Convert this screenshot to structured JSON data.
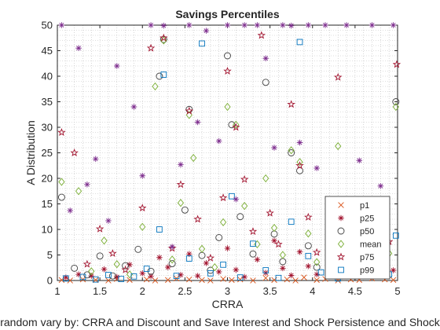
{
  "chart_data": {
    "type": "scatter",
    "title": "Savings Percentiles",
    "xlabel": "CRRA",
    "ylabel": "A Distribution",
    "caption": "random vary by: CRRA and Discount and Save Interest and Shock Persistence and Shock",
    "xlim": [
      1,
      5
    ],
    "ylim": [
      0,
      50
    ],
    "xticks": [
      "1",
      "1.5",
      "2",
      "2.5",
      "3",
      "3.5",
      "4",
      "4.5",
      "5"
    ],
    "yticks": [
      "0",
      "5",
      "10",
      "15",
      "20",
      "25",
      "30",
      "35",
      "40",
      "45",
      "50"
    ],
    "grid": "minor-dotted",
    "legend_position": "bottom-right",
    "series": [
      {
        "name": "p1",
        "marker": "x",
        "color": "#d95319",
        "points": [
          [
            1.05,
            0.1
          ],
          [
            1.15,
            0.0
          ],
          [
            1.3,
            0.2
          ],
          [
            1.45,
            0.1
          ],
          [
            1.6,
            0.0
          ],
          [
            1.7,
            0.3
          ],
          [
            1.85,
            0.1
          ],
          [
            2.05,
            0.2
          ],
          [
            2.15,
            0.0
          ],
          [
            2.3,
            0.1
          ],
          [
            2.4,
            0.4
          ],
          [
            2.55,
            0.2
          ],
          [
            2.7,
            0.1
          ],
          [
            2.8,
            0.0
          ],
          [
            2.95,
            0.3
          ],
          [
            3.05,
            0.1
          ],
          [
            3.15,
            0.2
          ],
          [
            3.3,
            0.0
          ],
          [
            3.45,
            0.5
          ],
          [
            3.55,
            0.1
          ],
          [
            3.7,
            0.2
          ],
          [
            3.8,
            0.0
          ],
          [
            3.9,
            0.6
          ],
          [
            4.05,
            0.1
          ],
          [
            4.15,
            0.3
          ],
          [
            4.3,
            0.0
          ],
          [
            4.45,
            0.2
          ],
          [
            4.55,
            0.1
          ],
          [
            4.7,
            0.4
          ],
          [
            4.85,
            0.2
          ],
          [
            4.95,
            0.1
          ]
        ]
      },
      {
        "name": "p25",
        "marker": "asterisk",
        "color": "#a2142f",
        "points": [
          [
            1.1,
            0.6
          ],
          [
            1.25,
            1.2
          ],
          [
            1.4,
            0.9
          ],
          [
            1.55,
            2.2
          ],
          [
            1.7,
            0.7
          ],
          [
            1.85,
            3.1
          ],
          [
            2.0,
            1.4
          ],
          [
            2.1,
            0.8
          ],
          [
            2.2,
            4.5
          ],
          [
            2.3,
            2.6
          ],
          [
            2.45,
            1.1
          ],
          [
            2.55,
            5.2
          ],
          [
            2.65,
            0.9
          ],
          [
            2.75,
            3.4
          ],
          [
            2.9,
            1.7
          ],
          [
            3.0,
            6.3
          ],
          [
            3.1,
            2.1
          ],
          [
            3.2,
            0.7
          ],
          [
            3.35,
            4.1
          ],
          [
            3.45,
            1.5
          ],
          [
            3.55,
            7.8
          ],
          [
            3.65,
            2.4
          ],
          [
            3.75,
            1.0
          ],
          [
            3.85,
            5.6
          ],
          [
            3.95,
            2.8
          ],
          [
            4.05,
            1.2
          ],
          [
            4.2,
            3.9
          ],
          [
            4.35,
            0.8
          ],
          [
            4.5,
            2.3
          ],
          [
            4.65,
            1.6
          ],
          [
            4.8,
            4.4
          ],
          [
            4.95,
            2.0
          ]
        ]
      },
      {
        "name": "p50",
        "marker": "circle",
        "color": "#404040",
        "points": [
          [
            1.05,
            16.3
          ],
          [
            1.2,
            2.4
          ],
          [
            1.35,
            1.1
          ],
          [
            1.5,
            4.8
          ],
          [
            1.65,
            0.9
          ],
          [
            1.8,
            2.9
          ],
          [
            1.95,
            6.1
          ],
          [
            2.1,
            1.8
          ],
          [
            2.2,
            40.0
          ],
          [
            2.25,
            47.2
          ],
          [
            2.35,
            3.3
          ],
          [
            2.5,
            13.8
          ],
          [
            2.55,
            33.5
          ],
          [
            2.7,
            4.9
          ],
          [
            2.8,
            2.0
          ],
          [
            2.9,
            8.4
          ],
          [
            3.0,
            44.0
          ],
          [
            3.05,
            30.5
          ],
          [
            3.15,
            12.5
          ],
          [
            3.3,
            5.2
          ],
          [
            3.45,
            38.8
          ],
          [
            3.55,
            9.1
          ],
          [
            3.65,
            3.7
          ],
          [
            3.75,
            25.0
          ],
          [
            3.85,
            21.5
          ],
          [
            3.95,
            6.8
          ],
          [
            4.05,
            2.6
          ],
          [
            4.25,
            11.2
          ],
          [
            4.4,
            4.5
          ],
          [
            4.55,
            1.9
          ],
          [
            4.7,
            7.3
          ],
          [
            4.85,
            3.1
          ],
          [
            4.98,
            35.0
          ]
        ]
      },
      {
        "name": "mean",
        "marker": "diamond",
        "color": "#77ac30",
        "points": [
          [
            1.05,
            19.3
          ],
          [
            1.25,
            17.5
          ],
          [
            1.4,
            1.8
          ],
          [
            1.55,
            7.8
          ],
          [
            1.7,
            3.2
          ],
          [
            1.85,
            1.2
          ],
          [
            2.0,
            10.5
          ],
          [
            2.15,
            38.0
          ],
          [
            2.25,
            47.0
          ],
          [
            2.35,
            4.1
          ],
          [
            2.45,
            15.2
          ],
          [
            2.6,
            24.0
          ],
          [
            2.55,
            32.4
          ],
          [
            2.7,
            6.2
          ],
          [
            2.85,
            2.6
          ],
          [
            2.95,
            11.4
          ],
          [
            3.0,
            34.0
          ],
          [
            3.1,
            30.5
          ],
          [
            3.2,
            14.6
          ],
          [
            3.35,
            7.1
          ],
          [
            3.45,
            20.0
          ],
          [
            3.55,
            10.3
          ],
          [
            3.65,
            5.0
          ],
          [
            3.75,
            25.5
          ],
          [
            3.85,
            23.2
          ],
          [
            3.95,
            9.2
          ],
          [
            4.05,
            3.6
          ],
          [
            4.3,
            26.3
          ],
          [
            4.45,
            6.4
          ],
          [
            4.6,
            2.8
          ],
          [
            4.75,
            9.8
          ],
          [
            4.9,
            5.3
          ],
          [
            4.98,
            34.0
          ]
        ]
      },
      {
        "name": "p75",
        "marker": "pentagram",
        "color": "#a2142f",
        "points": [
          [
            1.05,
            29.0
          ],
          [
            1.2,
            25.0
          ],
          [
            1.35,
            3.2
          ],
          [
            1.5,
            10.1
          ],
          [
            1.65,
            5.3
          ],
          [
            1.8,
            2.1
          ],
          [
            2.0,
            14.2
          ],
          [
            2.1,
            45.5
          ],
          [
            2.25,
            47.5
          ],
          [
            2.35,
            6.3
          ],
          [
            2.45,
            18.8
          ],
          [
            2.55,
            33.2
          ],
          [
            2.65,
            12.0
          ],
          [
            2.8,
            4.4
          ],
          [
            2.95,
            16.2
          ],
          [
            3.0,
            41.0
          ],
          [
            3.1,
            30.0
          ],
          [
            3.2,
            19.8
          ],
          [
            3.3,
            9.6
          ],
          [
            3.4,
            48.0
          ],
          [
            3.5,
            13.2
          ],
          [
            3.6,
            7.1
          ],
          [
            3.75,
            34.5
          ],
          [
            3.85,
            22.5
          ],
          [
            3.95,
            12.4
          ],
          [
            4.05,
            5.5
          ],
          [
            4.3,
            39.8
          ],
          [
            4.45,
            8.9
          ],
          [
            4.6,
            4.2
          ],
          [
            4.75,
            13.0
          ],
          [
            4.9,
            7.6
          ],
          [
            4.99,
            42.3
          ]
        ]
      },
      {
        "name": "p99",
        "marker": "square",
        "color": "#0072bd",
        "points": [
          [
            1.1,
            0.4
          ],
          [
            1.3,
            0.7
          ],
          [
            1.45,
            0.2
          ],
          [
            1.6,
            1.1
          ],
          [
            1.75,
            0.3
          ],
          [
            1.9,
            0.8
          ],
          [
            2.05,
            2.3
          ],
          [
            2.2,
            10.0
          ],
          [
            2.25,
            40.3
          ],
          [
            2.4,
            0.9
          ],
          [
            2.55,
            4.3
          ],
          [
            2.7,
            46.4
          ],
          [
            2.8,
            1.4
          ],
          [
            2.95,
            3.1
          ],
          [
            3.05,
            16.5
          ],
          [
            3.15,
            0.6
          ],
          [
            3.3,
            7.2
          ],
          [
            3.45,
            2.0
          ],
          [
            3.6,
            0.5
          ],
          [
            3.75,
            11.5
          ],
          [
            3.85,
            46.7
          ],
          [
            3.95,
            4.8
          ],
          [
            4.1,
            1.6
          ],
          [
            4.3,
            0.4
          ],
          [
            4.45,
            3.3
          ],
          [
            4.6,
            0.9
          ],
          [
            4.75,
            2.4
          ],
          [
            4.9,
            1.2
          ],
          [
            4.98,
            8.8
          ]
        ]
      },
      {
        "name": "",
        "marker": "asterisk",
        "color": "#7e2f8e",
        "points": [
          [
            1.05,
            50.0
          ],
          [
            1.15,
            13.7
          ],
          [
            1.25,
            45.5
          ],
          [
            1.35,
            18.8
          ],
          [
            1.45,
            23.8
          ],
          [
            1.6,
            11.7
          ],
          [
            1.7,
            42.0
          ],
          [
            1.9,
            34.0
          ],
          [
            2.0,
            20.5
          ],
          [
            2.1,
            50.0
          ],
          [
            2.25,
            49.9
          ],
          [
            2.35,
            6.6
          ],
          [
            2.45,
            22.7
          ],
          [
            2.55,
            50.0
          ],
          [
            2.65,
            31.0
          ],
          [
            2.75,
            48.9
          ],
          [
            2.9,
            27.3
          ],
          [
            3.0,
            50.0
          ],
          [
            3.1,
            15.9
          ],
          [
            3.2,
            50.0
          ],
          [
            3.35,
            50.0
          ],
          [
            3.45,
            43.5
          ],
          [
            3.55,
            26.0
          ],
          [
            3.65,
            50.0
          ],
          [
            3.75,
            49.9
          ],
          [
            3.85,
            27.0
          ],
          [
            3.95,
            50.0
          ],
          [
            4.05,
            22.0
          ],
          [
            4.15,
            50.0
          ],
          [
            4.25,
            13.0
          ],
          [
            4.4,
            50.0
          ],
          [
            4.55,
            23.5
          ],
          [
            4.7,
            50.0
          ],
          [
            4.8,
            18.5
          ],
          [
            4.95,
            50.0
          ]
        ]
      }
    ]
  }
}
